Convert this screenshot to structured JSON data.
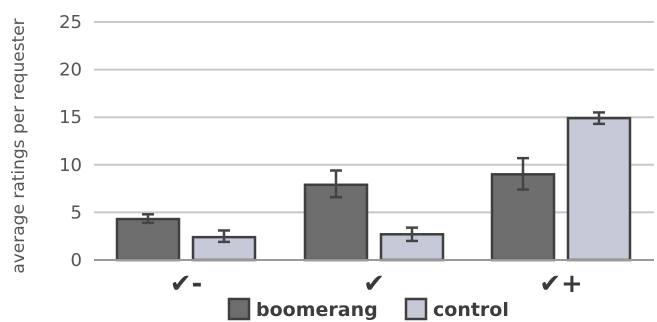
{
  "chart_data": {
    "type": "bar",
    "title": "",
    "xlabel": "",
    "ylabel": "average ratings per requester",
    "ylim": [
      0,
      25
    ],
    "yticks": [
      0,
      5,
      10,
      15,
      20,
      25
    ],
    "grid": true,
    "legend_position": "bottom",
    "categories": [
      "✔-",
      "✔",
      "✔+"
    ],
    "series": [
      {
        "name": "boomerang",
        "color": "#6e6e6e",
        "values": [
          4.3,
          7.9,
          9.0
        ],
        "error_low": [
          3.9,
          6.6,
          7.4
        ],
        "error_high": [
          4.8,
          9.4,
          10.7
        ]
      },
      {
        "name": "control",
        "color": "#c5c9d8",
        "values": [
          2.4,
          2.7,
          14.9
        ],
        "error_low": [
          1.9,
          2.0,
          14.3
        ],
        "error_high": [
          3.1,
          3.4,
          15.5
        ]
      }
    ]
  }
}
